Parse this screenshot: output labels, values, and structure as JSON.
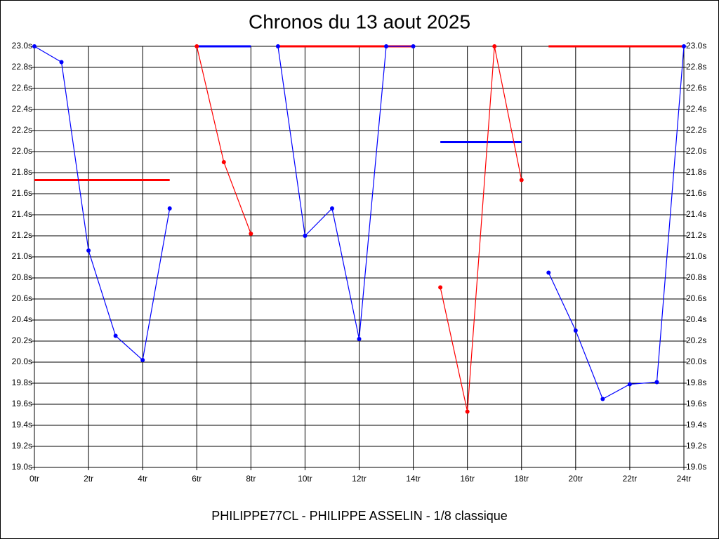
{
  "chart_data": {
    "type": "line",
    "title": "Chronos du 13 aout 2025",
    "footer": "PHILIPPE77CL - PHILIPPE ASSELIN - 1/8 classique",
    "xlim": [
      0,
      24
    ],
    "ylim": [
      19.0,
      23.0
    ],
    "grid": true,
    "xticks": [
      {
        "value": 0,
        "label": "0tr"
      },
      {
        "value": 2,
        "label": "2tr"
      },
      {
        "value": 4,
        "label": "4tr"
      },
      {
        "value": 6,
        "label": "6tr"
      },
      {
        "value": 8,
        "label": "8tr"
      },
      {
        "value": 10,
        "label": "10tr"
      },
      {
        "value": 12,
        "label": "12tr"
      },
      {
        "value": 14,
        "label": "14tr"
      },
      {
        "value": 16,
        "label": "16tr"
      },
      {
        "value": 18,
        "label": "18tr"
      },
      {
        "value": 20,
        "label": "20tr"
      },
      {
        "value": 22,
        "label": "22tr"
      },
      {
        "value": 24,
        "label": "24tr"
      }
    ],
    "yticks": [
      {
        "value": 19.0,
        "label": "19.0s"
      },
      {
        "value": 19.2,
        "label": "19.2s"
      },
      {
        "value": 19.4,
        "label": "19.4s"
      },
      {
        "value": 19.6,
        "label": "19.6s"
      },
      {
        "value": 19.8,
        "label": "19.8s"
      },
      {
        "value": 20.0,
        "label": "20.0s"
      },
      {
        "value": 20.2,
        "label": "20.2s"
      },
      {
        "value": 20.4,
        "label": "20.4s"
      },
      {
        "value": 20.6,
        "label": "20.6s"
      },
      {
        "value": 20.8,
        "label": "20.8s"
      },
      {
        "value": 21.0,
        "label": "21.0s"
      },
      {
        "value": 21.2,
        "label": "21.2s"
      },
      {
        "value": 21.4,
        "label": "21.4s"
      },
      {
        "value": 21.6,
        "label": "21.6s"
      },
      {
        "value": 21.8,
        "label": "21.8s"
      },
      {
        "value": 22.0,
        "label": "22.0s"
      },
      {
        "value": 22.2,
        "label": "22.2s"
      },
      {
        "value": 22.4,
        "label": "22.4s"
      },
      {
        "value": 22.6,
        "label": "22.6s"
      },
      {
        "value": 22.8,
        "label": "22.8s"
      },
      {
        "value": 23.0,
        "label": "23.0s"
      }
    ],
    "series": [
      {
        "color": "#0000ff",
        "x": [
          0,
          1,
          2,
          3,
          4,
          5
        ],
        "values": [
          23.0,
          22.85,
          21.06,
          20.25,
          20.02,
          21.46
        ]
      },
      {
        "color": "#ff0000",
        "x": [
          6,
          7,
          8
        ],
        "values": [
          23.0,
          21.9,
          21.22
        ]
      },
      {
        "color": "#0000ff",
        "x": [
          9,
          10,
          11,
          12,
          13,
          14
        ],
        "values": [
          23.0,
          21.2,
          21.46,
          20.22,
          23.0,
          23.0
        ]
      },
      {
        "color": "#ff0000",
        "x": [
          15,
          16,
          17,
          18
        ],
        "values": [
          20.71,
          19.53,
          23.0,
          21.73
        ]
      },
      {
        "color": "#0000ff",
        "x": [
          19,
          20,
          21,
          22,
          23,
          24
        ],
        "values": [
          20.85,
          20.3,
          19.65,
          19.79,
          19.81,
          23.0
        ]
      }
    ],
    "reference_lines": [
      {
        "color": "#ff0000",
        "x_start": 0,
        "x_end": 5,
        "value": 21.73
      },
      {
        "color": "#0000ff",
        "x_start": 6,
        "x_end": 8,
        "value": 23.0
      },
      {
        "color": "#ff0000",
        "x_start": 9,
        "x_end": 14,
        "value": 23.0
      },
      {
        "color": "#0000ff",
        "x_start": 15,
        "x_end": 18,
        "value": 22.09
      },
      {
        "color": "#ff0000",
        "x_start": 19,
        "x_end": 24,
        "value": 23.0
      }
    ]
  }
}
